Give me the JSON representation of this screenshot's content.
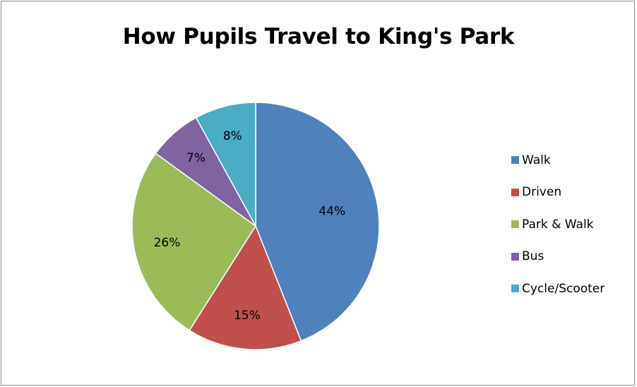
{
  "chart_data": {
    "type": "pie",
    "title": "How Pupils Travel to King's Park",
    "categories": [
      "Walk",
      "Driven",
      "Park & Walk",
      "Bus",
      "Cycle/Scooter"
    ],
    "values": [
      44,
      15,
      26,
      7,
      8
    ],
    "value_labels": [
      "44%",
      "15%",
      "26%",
      "7%",
      "8%"
    ],
    "colors": [
      "#4f81bd",
      "#c0504d",
      "#9bbb59",
      "#8064a2",
      "#4bacc6"
    ],
    "legend_position": "right",
    "start": "top",
    "direction": "clockwise"
  }
}
